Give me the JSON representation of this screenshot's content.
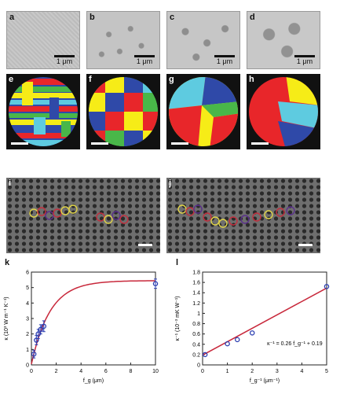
{
  "panel_labels": [
    "a",
    "b",
    "c",
    "d",
    "e",
    "f",
    "g",
    "h",
    "i",
    "j",
    "k",
    "l"
  ],
  "scale_bar_text": "1 μm",
  "colors": {
    "grains": [
      "#e8262a",
      "#f6ec17",
      "#2f49a8",
      "#49b749",
      "#5ecbe0",
      "#e8262a"
    ],
    "lattice_rings": [
      "#e0d44a",
      "#c2303f",
      "#5a2f8c"
    ],
    "chart_line": "#c8283b",
    "chart_marker": "#2a3db0"
  },
  "chart_data": [
    {
      "type": "scatter",
      "panel": "k",
      "xlabel": "f_g (μm)",
      "ylabel": "κ (10³ W m⁻¹ K⁻¹)",
      "xlim": [
        0,
        10
      ],
      "ylim": [
        0,
        6
      ],
      "xticks": [
        0,
        2,
        4,
        6,
        8,
        10
      ],
      "yticks": [
        0,
        1,
        2,
        3,
        4,
        5,
        6
      ],
      "points": [
        {
          "x": 0.2,
          "y": 0.7,
          "err": 0.25
        },
        {
          "x": 0.4,
          "y": 1.6,
          "err": 0.3
        },
        {
          "x": 0.55,
          "y": 2.0,
          "err": 0.3
        },
        {
          "x": 0.75,
          "y": 2.3,
          "err": 0.3
        },
        {
          "x": 1.0,
          "y": 2.5,
          "err": 0.35
        },
        {
          "x": 10.0,
          "y": 5.25,
          "err": 0.3
        }
      ],
      "fit": "saturating curve"
    },
    {
      "type": "scatter",
      "panel": "l",
      "xlabel": "f_g⁻¹ (μm⁻¹)",
      "ylabel": "κ⁻¹ (10⁻³ mK W⁻¹)",
      "xlim": [
        0,
        5
      ],
      "ylim": [
        0,
        1.8
      ],
      "xticks": [
        0,
        1,
        2,
        3,
        4,
        5
      ],
      "yticks": [
        0,
        0.2,
        0.4,
        0.6,
        0.8,
        1.0,
        1.2,
        1.4,
        1.6,
        1.8
      ],
      "points": [
        {
          "x": 0.1,
          "y": 0.2
        },
        {
          "x": 1.0,
          "y": 0.41
        },
        {
          "x": 1.4,
          "y": 0.49
        },
        {
          "x": 2.0,
          "y": 0.62
        },
        {
          "x": 5.0,
          "y": 1.52
        }
      ],
      "fit": {
        "slope": 0.26,
        "intercept": 0.19
      },
      "annotation": "κ⁻¹ = 0.26 f_g⁻¹ + 0.19"
    }
  ]
}
